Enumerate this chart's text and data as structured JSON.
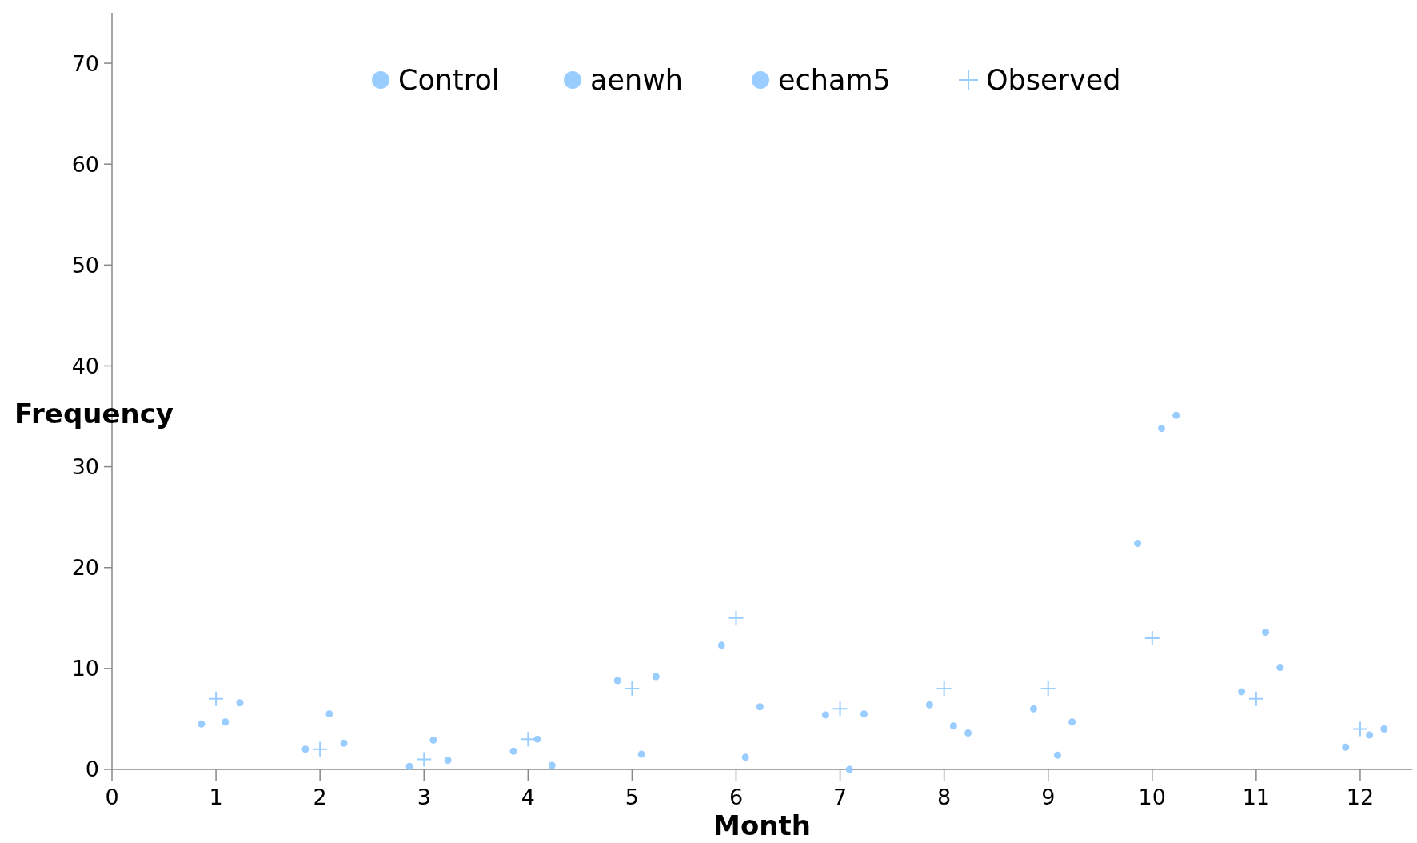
{
  "chart_data": {
    "type": "scatter",
    "xlabel": "Month",
    "ylabel": "Frequency",
    "xlim": [
      0,
      12.5
    ],
    "xticks": [
      0,
      1,
      2,
      3,
      4,
      5,
      6,
      7,
      8,
      9,
      10,
      11,
      12
    ],
    "ylim": [
      0,
      75
    ],
    "yticks": [
      0,
      10,
      20,
      30,
      40,
      50,
      60,
      70
    ],
    "grid": false,
    "legend": "top",
    "series": [
      {
        "name": "Control",
        "color": "#99ccff",
        "marker": "circle",
        "x": [
          0.86,
          1.86,
          2.86,
          3.86,
          4.86,
          5.86,
          6.86,
          7.86,
          8.86,
          9.86,
          10.86,
          11.86
        ],
        "values": [
          4.5,
          2.0,
          0.3,
          1.8,
          8.8,
          12.3,
          5.4,
          6.4,
          6.0,
          22.4,
          7.7,
          2.2
        ]
      },
      {
        "name": "aenwh",
        "color": "#99ccff",
        "marker": "circle",
        "x": [
          1.09,
          2.09,
          3.09,
          4.09,
          5.09,
          6.09,
          7.09,
          8.09,
          9.09,
          10.09,
          11.09,
          12.09
        ],
        "values": [
          4.7,
          5.5,
          2.9,
          3.0,
          1.5,
          1.2,
          0.0,
          4.3,
          1.4,
          33.8,
          13.6,
          3.4
        ]
      },
      {
        "name": "echam5",
        "color": "#99ccff",
        "marker": "circle",
        "x": [
          1.23,
          2.23,
          3.23,
          4.23,
          5.23,
          6.23,
          7.23,
          8.23,
          9.23,
          10.23,
          11.23,
          12.23
        ],
        "values": [
          6.6,
          2.6,
          0.9,
          0.4,
          9.2,
          6.2,
          5.5,
          3.6,
          4.7,
          35.1,
          10.1,
          4.0
        ]
      },
      {
        "name": "Observed",
        "color": "#99ccff",
        "marker": "cross",
        "x": [
          1,
          2,
          3,
          4,
          5,
          6,
          7,
          8,
          9,
          10,
          11,
          12
        ],
        "values": [
          7,
          2,
          1,
          3,
          8,
          15,
          6,
          8,
          8,
          13,
          7,
          4
        ]
      }
    ]
  }
}
